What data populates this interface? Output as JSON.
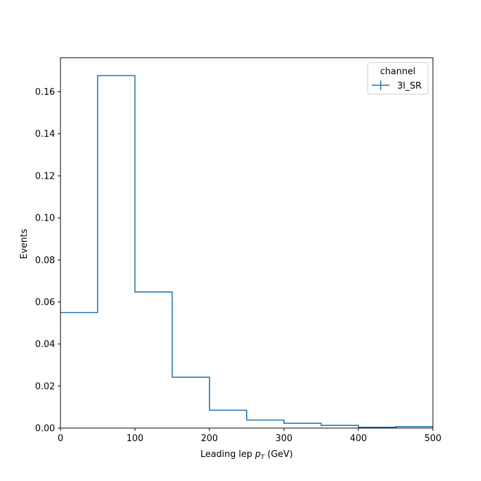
{
  "chart_data": {
    "type": "line",
    "style": "step-histogram",
    "bin_edges": [
      0,
      50,
      100,
      150,
      200,
      250,
      300,
      350,
      400,
      450,
      500
    ],
    "series": [
      {
        "name": "3l_SR",
        "color": "#1f77b4",
        "values": [
          0.055,
          0.1677,
          0.0648,
          0.0242,
          0.0085,
          0.0038,
          0.0023,
          0.0013,
          0.0004,
          0.0007
        ]
      }
    ],
    "xlabel_main": "Leading lep ",
    "xlabel_var": "p",
    "xlabel_sub": "T",
    "xlabel_unit": " (GeV)",
    "ylabel": "Events",
    "xlim": [
      0,
      500
    ],
    "ylim": [
      0,
      0.1762
    ],
    "xticks": [
      "0",
      "100",
      "200",
      "300",
      "400",
      "500"
    ],
    "yticks": [
      "0.00",
      "0.02",
      "0.04",
      "0.06",
      "0.08",
      "0.10",
      "0.12",
      "0.14",
      "0.16"
    ],
    "grid": false,
    "legend": {
      "title": "channel",
      "placement": "top-right"
    }
  }
}
